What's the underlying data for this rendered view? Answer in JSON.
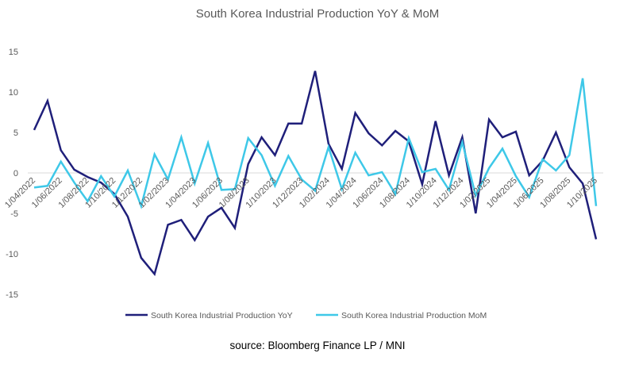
{
  "chart_data": {
    "type": "line",
    "title": "South Korea Industrial Production YoY & MoM",
    "xlabel": "",
    "ylabel": "",
    "ylim": [
      -15,
      15
    ],
    "yticks": [
      -15,
      -10,
      -5,
      0,
      5,
      10,
      15
    ],
    "grid": false,
    "legend_position": "bottom",
    "categories": [
      "1/04/2022",
      "1/05/2022",
      "1/06/2022",
      "1/07/2022",
      "1/08/2022",
      "1/09/2022",
      "1/10/2022",
      "1/11/2022",
      "1/12/2022",
      "1/01/2023",
      "1/02/2023",
      "1/03/2023",
      "1/04/2023",
      "1/05/2023",
      "1/06/2023",
      "1/07/2023",
      "1/08/2023",
      "1/09/2023",
      "1/10/2023",
      "1/11/2023",
      "1/12/2023",
      "1/01/2024",
      "1/02/2024",
      "1/03/2024",
      "1/04/2024",
      "1/05/2024",
      "1/06/2024",
      "1/07/2024",
      "1/08/2024",
      "1/09/2024",
      "1/10/2024",
      "1/11/2024",
      "1/12/2024",
      "1/01/2025",
      "1/02/2025",
      "1/03/2025",
      "1/04/2025",
      "1/05/2025",
      "1/06/2025",
      "1/07/2025",
      "1/08/2025",
      "1/09/2025",
      "1/10/2025"
    ],
    "xtick_labels": [
      "1/04/2022",
      "1/06/2022",
      "1/08/2022",
      "1/10/2022",
      "1/12/2022",
      "1/02/2023",
      "1/04/2023",
      "1/06/2023",
      "1/08/2023",
      "1/10/2023",
      "1/12/2023",
      "1/02/2024",
      "1/04/2024",
      "1/06/2024",
      "1/08/2024",
      "1/10/2024",
      "1/12/2024",
      "1/02/2025",
      "1/04/2025",
      "1/06/2025",
      "1/08/2025",
      "1/10/2025"
    ],
    "series": [
      {
        "name": "South Korea Industrial Production YoY",
        "color": "#1f1f7a",
        "values": [
          5.3,
          8.9,
          2.8,
          0.4,
          -0.5,
          -1.2,
          -2.6,
          -5.4,
          -10.5,
          -12.5,
          -6.4,
          -5.8,
          -8.3,
          -5.4,
          -4.3,
          -6.8,
          1.1,
          4.4,
          2.2,
          6.1,
          6.1,
          12.6,
          3.6,
          0.5,
          7.4,
          4.9,
          3.4,
          5.2,
          3.9,
          -1.4,
          6.4,
          -0.3,
          4.4,
          -5.0,
          6.6,
          4.4,
          5.1,
          -0.3,
          1.5,
          5.0,
          0.7,
          -1.3,
          -8.2
        ]
      },
      {
        "name": "South Korea Industrial Production MoM",
        "color": "#3ec8e8",
        "values": [
          -1.8,
          -1.6,
          1.4,
          -1.2,
          -3.5,
          -0.4,
          -2.9,
          0.3,
          -4.1,
          2.3,
          -0.8,
          4.4,
          -1.3,
          3.7,
          -2.1,
          -2.0,
          4.3,
          2.2,
          -1.6,
          2.1,
          -0.8,
          -2.2,
          3.2,
          -2.0,
          2.5,
          -0.3,
          0.1,
          -2.6,
          4.3,
          0.1,
          0.5,
          -2.1,
          3.8,
          -2.8,
          0.6,
          3.0,
          -0.4,
          -3.0,
          1.7,
          0.3,
          2.2,
          11.7,
          -4.1
        ]
      }
    ]
  },
  "source": "source:  Bloomberg Finance LP / MNI"
}
